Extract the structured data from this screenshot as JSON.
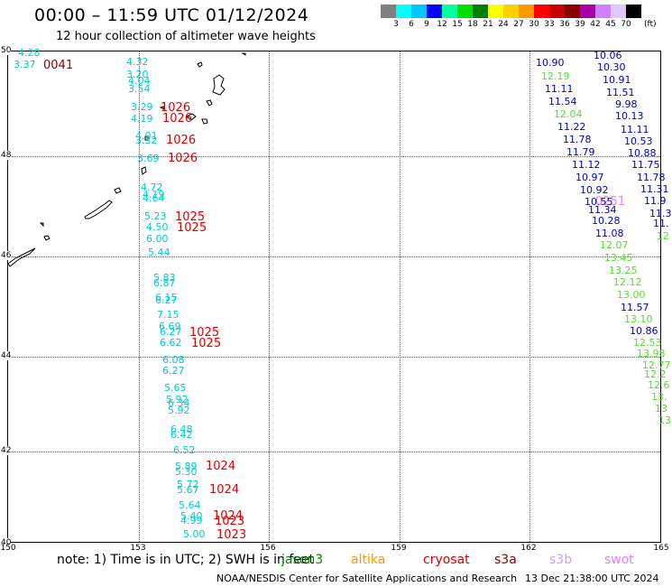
{
  "header": {
    "title": "00:00 – 11:59 UTC 01/12/2024",
    "subtitle": "12 hour collection of altimeter wave heights"
  },
  "legend": {
    "colors": [
      "#808080",
      "#00ffff",
      "#00c8ff",
      "#0000ff",
      "#00ffa0",
      "#00e000",
      "#008000",
      "#ffff00",
      "#ffd000",
      "#ff9900",
      "#ff0000",
      "#cc0000",
      "#880000",
      "#aa00aa",
      "#d080ff",
      "#e0c8ff",
      "#000000"
    ],
    "labels": [
      "3",
      "6",
      "9",
      "12",
      "15",
      "18",
      "21",
      "24",
      "27",
      "30",
      "33",
      "36",
      "39",
      "42",
      "45",
      "70"
    ],
    "unit": "(ft)"
  },
  "axes": {
    "x_ticks": [
      "150",
      "153",
      "156",
      "159",
      "162",
      "165"
    ],
    "y_ticks": [
      "50",
      "48",
      "46",
      "44",
      "42",
      "40"
    ]
  },
  "observations": {
    "west_track": [
      {
        "t": "4.28",
        "c": "c-jason"
      },
      {
        "t": "3.37",
        "c": "c-jason"
      },
      {
        "t": "4.32",
        "c": "c-jason"
      },
      {
        "t": "3.20",
        "c": "c-jason"
      },
      {
        "t": "4.04",
        "c": "c-jason"
      },
      {
        "t": "3.54",
        "c": "c-jason"
      },
      {
        "t": "3.29",
        "c": "c-jason"
      },
      {
        "t": "4.19",
        "c": "c-jason"
      },
      {
        "t": "4.01",
        "c": "c-jason"
      },
      {
        "t": "3.32",
        "c": "c-jason"
      },
      {
        "t": "3.69",
        "c": "c-jason"
      },
      {
        "t": "4.72",
        "c": "c-jason"
      },
      {
        "t": "4.19",
        "c": "c-jason"
      },
      {
        "t": "4.64",
        "c": "c-jason"
      },
      {
        "t": "5.23",
        "c": "c-jason"
      },
      {
        "t": "4.50",
        "c": "c-jason"
      },
      {
        "t": "6.00",
        "c": "c-jason"
      },
      {
        "t": "5.44",
        "c": "c-jason"
      },
      {
        "t": "5.83",
        "c": "c-jason"
      },
      {
        "t": "6.87",
        "c": "c-jason"
      },
      {
        "t": "6.15",
        "c": "c-jason"
      },
      {
        "t": "6.27",
        "c": "c-jason"
      },
      {
        "t": "7.15",
        "c": "c-jason"
      },
      {
        "t": "6.69",
        "c": "c-jason"
      },
      {
        "t": "6.27",
        "c": "c-jason"
      },
      {
        "t": "6.62",
        "c": "c-jason"
      },
      {
        "t": "6.08",
        "c": "c-jason"
      },
      {
        "t": "6.27",
        "c": "c-jason"
      },
      {
        "t": "5.65",
        "c": "c-jason"
      },
      {
        "t": "5.92",
        "c": "c-jason"
      },
      {
        "t": "6.34",
        "c": "c-jason"
      },
      {
        "t": "5.92",
        "c": "c-jason"
      },
      {
        "t": "6.48",
        "c": "c-jason"
      },
      {
        "t": "6.42",
        "c": "c-jason"
      },
      {
        "t": "6.52",
        "c": "c-jason"
      },
      {
        "t": "5.89",
        "c": "c-jason"
      },
      {
        "t": "5.30",
        "c": "c-jason"
      },
      {
        "t": "5.72",
        "c": "c-jason"
      },
      {
        "t": "5.67",
        "c": "c-jason"
      },
      {
        "t": "5.64",
        "c": "c-jason"
      },
      {
        "t": "5.40",
        "c": "c-jason"
      },
      {
        "t": "4.99",
        "c": "c-jason"
      },
      {
        "t": "5.00",
        "c": "c-jason"
      }
    ],
    "pressure_labels": [
      {
        "t": "0041",
        "c": "c-dark"
      },
      {
        "t": "1026",
        "c": "c-red"
      },
      {
        "t": "1026",
        "c": "c-red"
      },
      {
        "t": "1026",
        "c": "c-red"
      },
      {
        "t": "1026",
        "c": "c-red"
      },
      {
        "t": "1025",
        "c": "c-red"
      },
      {
        "t": "1025",
        "c": "c-red"
      },
      {
        "t": "1025",
        "c": "c-red"
      },
      {
        "t": "1025",
        "c": "c-red"
      },
      {
        "t": "1024",
        "c": "c-red"
      },
      {
        "t": "1024",
        "c": "c-red"
      },
      {
        "t": "1024",
        "c": "c-red"
      },
      {
        "t": "1023",
        "c": "c-red"
      },
      {
        "t": "1023",
        "c": "c-red"
      },
      {
        "t": "0251",
        "c": "c-violet"
      }
    ],
    "east_track": [
      {
        "t": "10.06",
        "c": "c-blue"
      },
      {
        "t": "10.90",
        "c": "c-blue"
      },
      {
        "t": "10.30",
        "c": "c-blue"
      },
      {
        "t": "12.19",
        "c": "c-green"
      },
      {
        "t": "10.91",
        "c": "c-blue"
      },
      {
        "t": "11.11",
        "c": "c-blue"
      },
      {
        "t": "11.51",
        "c": "c-blue"
      },
      {
        "t": "11.54",
        "c": "c-blue"
      },
      {
        "t": "9.98",
        "c": "c-blue"
      },
      {
        "t": "12.04",
        "c": "c-green"
      },
      {
        "t": "10.13",
        "c": "c-blue"
      },
      {
        "t": "11.22",
        "c": "c-blue"
      },
      {
        "t": "11.11",
        "c": "c-blue"
      },
      {
        "t": "11.78",
        "c": "c-blue"
      },
      {
        "t": "10.53",
        "c": "c-blue"
      },
      {
        "t": "11.79",
        "c": "c-blue"
      },
      {
        "t": "10.88",
        "c": "c-blue"
      },
      {
        "t": "11.12",
        "c": "c-blue"
      },
      {
        "t": "11.75",
        "c": "c-blue"
      },
      {
        "t": "10.97",
        "c": "c-blue"
      },
      {
        "t": "11.78",
        "c": "c-blue"
      },
      {
        "t": "10.92",
        "c": "c-blue"
      },
      {
        "t": "11.31",
        "c": "c-blue"
      },
      {
        "t": "10.55",
        "c": "c-blue"
      },
      {
        "t": "11.9",
        "c": "c-blue"
      },
      {
        "t": "11.34",
        "c": "c-blue"
      },
      {
        "t": "11.3",
        "c": "c-blue"
      },
      {
        "t": "10.28",
        "c": "c-blue"
      },
      {
        "t": "11.",
        "c": "c-blue"
      },
      {
        "t": "11.08",
        "c": "c-blue"
      },
      {
        "t": "12",
        "c": "c-green"
      },
      {
        "t": "12.07",
        "c": "c-green"
      },
      {
        "t": "13.45",
        "c": "c-green"
      },
      {
        "t": "13.25",
        "c": "c-green"
      },
      {
        "t": "12.12",
        "c": "c-green"
      },
      {
        "t": "13.00",
        "c": "c-green"
      },
      {
        "t": "11.57",
        "c": "c-blue"
      },
      {
        "t": "13.10",
        "c": "c-green"
      },
      {
        "t": "10.86",
        "c": "c-blue"
      },
      {
        "t": "12.53",
        "c": "c-green"
      },
      {
        "t": "13.98",
        "c": "c-green"
      },
      {
        "t": "12.77",
        "c": "c-green"
      },
      {
        "t": "12.2",
        "c": "c-green"
      },
      {
        "t": "12.6",
        "c": "c-green"
      },
      {
        "t": "13.",
        "c": "c-green"
      },
      {
        "t": "13",
        "c": "c-green"
      },
      {
        "t": "13",
        "c": "c-green"
      }
    ]
  },
  "footer": {
    "note": "note:  1) Time is in UTC;  2) SWH is in feet",
    "satellites": [
      {
        "t": "jason3",
        "color": "#008800"
      },
      {
        "t": "altika",
        "color": "#ff9900"
      },
      {
        "t": "cryosat",
        "color": "#dd0000"
      },
      {
        "t": "s3a",
        "color": "#880000"
      },
      {
        "t": "s3b",
        "color": "#c8a0ff"
      },
      {
        "t": "swot",
        "color": "#e080ff"
      }
    ],
    "credit": "NOAA/NESDIS Center for Satellite Applications and Research",
    "timestamp": "13 Dec 21:38:00 UTC 2024"
  }
}
